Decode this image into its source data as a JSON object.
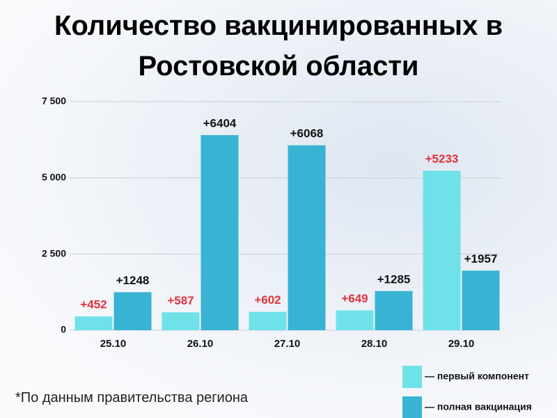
{
  "chart_data": {
    "type": "bar",
    "title": "Количество вакцинированных в Ростовской области",
    "note": "*По данным правительства региона",
    "categories": [
      "25.10",
      "26.10",
      "27.10",
      "28.10",
      "29.10"
    ],
    "series": [
      {
        "name": "— первый компонент",
        "color": "#6fe1e8",
        "label_color": "#e3313b",
        "values": [
          452,
          587,
          602,
          649,
          5233
        ],
        "value_labels": [
          "+452",
          "+587",
          "+602",
          "+649",
          "+5233"
        ]
      },
      {
        "name": "— полная вакцинация",
        "color": "#39b3d3",
        "label_color": "#111111",
        "values": [
          1248,
          6404,
          6068,
          1285,
          1957
        ],
        "value_labels": [
          "+1248",
          "+6404",
          "+6068",
          "+1285",
          "+1957"
        ]
      }
    ],
    "ylim": [
      0,
      7500
    ],
    "yticks": [
      0,
      {
        "value": 2500,
        "label": "2 500"
      },
      {
        "value": 5000,
        "label": "5 000"
      },
      {
        "value": 7500,
        "label": "7 500"
      }
    ],
    "grid": true
  }
}
